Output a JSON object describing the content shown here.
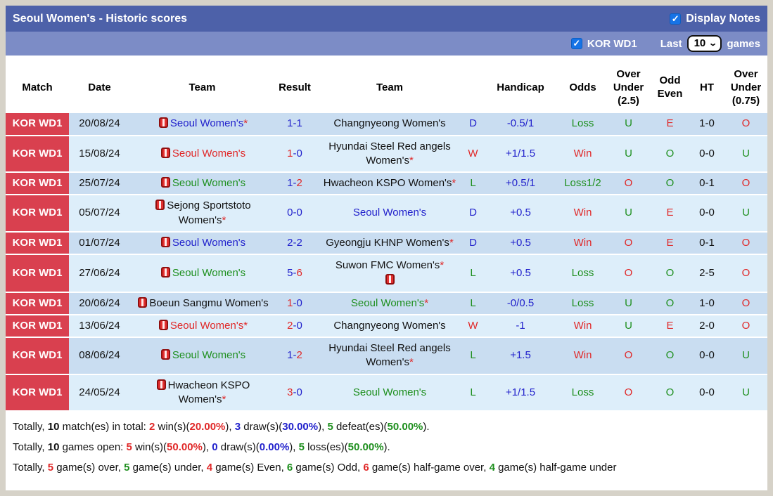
{
  "title_bar": {
    "title": "Seoul Women's - Historic scores",
    "display_notes_label": "Display Notes"
  },
  "filter_bar": {
    "league_label": "KOR WD1",
    "last_label": "Last",
    "games_count": "10",
    "games_label": "games"
  },
  "colors": {
    "accent_blue": "#2222cc",
    "accent_red": "#e02828",
    "accent_green": "#1e8f1e",
    "match_red": "#d9404f",
    "bar_dark": "#4d61a9",
    "bar_light": "#7c8cc6",
    "row_dark": "#c9ddf1",
    "row_light": "#ddeefa"
  },
  "table": {
    "headers": [
      "Match",
      "Date",
      "Team",
      "Result",
      "Team",
      "",
      "Handicap",
      "Odds",
      "Over Under (2.5)",
      "Odd Even",
      "HT",
      "Over Under (0.75)"
    ],
    "rows": [
      {
        "match": "KOR WD1",
        "date": "20/08/24",
        "home": "Seoul Women's",
        "home_star": "*",
        "home_color": "c-blue",
        "score_home": "1",
        "score_home_color": "c-blue",
        "score_sep": "-",
        "score_away": "1",
        "score_away_color": "c-blue",
        "away": "Changnyeong Women's",
        "away_star": "",
        "away_color": "c-black",
        "dwl": "D",
        "dwl_color": "c-blue",
        "handicap": "-0.5/1",
        "odds": "Loss",
        "odds_color": "c-green",
        "ou25": "U",
        "ou25_color": "c-green",
        "oe": "E",
        "oe_color": "c-red",
        "ht": "1-0",
        "ou075": "O",
        "ou075_color": "c-red"
      },
      {
        "match": "KOR WD1",
        "date": "15/08/24",
        "home": "Seoul Women's",
        "home_star": "",
        "home_color": "c-red",
        "score_home": "1",
        "score_home_color": "c-red",
        "score_sep": "-",
        "score_away": "0",
        "score_away_color": "c-blue",
        "away": "Hyundai Steel Red angels Women's",
        "away_star": "*",
        "away_color": "c-black",
        "dwl": "W",
        "dwl_color": "c-red",
        "handicap": "+1/1.5",
        "odds": "Win",
        "odds_color": "c-red",
        "ou25": "U",
        "ou25_color": "c-green",
        "oe": "O",
        "oe_color": "c-green",
        "ht": "0-0",
        "ou075": "U",
        "ou075_color": "c-green"
      },
      {
        "match": "KOR WD1",
        "date": "25/07/24",
        "home": "Seoul Women's",
        "home_star": "",
        "home_color": "c-green",
        "score_home": "1",
        "score_home_color": "c-blue",
        "score_sep": "-",
        "score_away": "2",
        "score_away_color": "c-red",
        "away": "Hwacheon KSPO Women's",
        "away_star": "*",
        "away_color": "c-black",
        "dwl": "L",
        "dwl_color": "c-green",
        "handicap": "+0.5/1",
        "odds": "Loss1/2",
        "odds_color": "c-green",
        "ou25": "O",
        "ou25_color": "c-red",
        "oe": "O",
        "oe_color": "c-green",
        "ht": "0-1",
        "ou075": "O",
        "ou075_color": "c-red"
      },
      {
        "match": "KOR WD1",
        "date": "05/07/24",
        "home": "Sejong Sportstoto Women's",
        "home_star": "*",
        "home_color": "c-black",
        "score_home": "0",
        "score_home_color": "c-blue",
        "score_sep": "-",
        "score_away": "0",
        "score_away_color": "c-blue",
        "away": "Seoul Women's",
        "away_star": "",
        "away_color": "c-blue",
        "dwl": "D",
        "dwl_color": "c-blue",
        "handicap": "+0.5",
        "odds": "Win",
        "odds_color": "c-red",
        "ou25": "U",
        "ou25_color": "c-green",
        "oe": "E",
        "oe_color": "c-red",
        "ht": "0-0",
        "ou075": "U",
        "ou075_color": "c-green"
      },
      {
        "match": "KOR WD1",
        "date": "01/07/24",
        "home": "Seoul Women's",
        "home_star": "",
        "home_color": "c-blue",
        "score_home": "2",
        "score_home_color": "c-blue",
        "score_sep": "-",
        "score_away": "2",
        "score_away_color": "c-blue",
        "away": "Gyeongju KHNP Women's",
        "away_star": "*",
        "away_color": "c-black",
        "dwl": "D",
        "dwl_color": "c-blue",
        "handicap": "+0.5",
        "odds": "Win",
        "odds_color": "c-red",
        "ou25": "O",
        "ou25_color": "c-red",
        "oe": "E",
        "oe_color": "c-red",
        "ht": "0-1",
        "ou075": "O",
        "ou075_color": "c-red"
      },
      {
        "match": "KOR WD1",
        "date": "27/06/24",
        "home": "Seoul Women's",
        "home_star": "",
        "home_color": "c-green",
        "score_home": "5",
        "score_home_color": "c-blue",
        "score_sep": "-",
        "score_away": "6",
        "score_away_color": "c-red",
        "away": "Suwon FMC Women's",
        "away_star": "*",
        "away_color": "c-black",
        "dwl": "L",
        "dwl_color": "c-green",
        "handicap": "+0.5",
        "odds": "Loss",
        "odds_color": "c-green",
        "ou25": "O",
        "ou25_color": "c-red",
        "oe": "O",
        "oe_color": "c-green",
        "ht": "2-5",
        "ou075": "O",
        "ou075_color": "c-red"
      },
      {
        "match": "KOR WD1",
        "date": "20/06/24",
        "home": "Boeun Sangmu Women's",
        "home_star": "",
        "home_color": "c-black",
        "score_home": "1",
        "score_home_color": "c-red",
        "score_sep": "-",
        "score_away": "0",
        "score_away_color": "c-blue",
        "away": "Seoul Women's",
        "away_star": "*",
        "away_color": "c-green",
        "dwl": "L",
        "dwl_color": "c-green",
        "handicap": "-0/0.5",
        "odds": "Loss",
        "odds_color": "c-green",
        "ou25": "U",
        "ou25_color": "c-green",
        "oe": "O",
        "oe_color": "c-green",
        "ht": "1-0",
        "ou075": "O",
        "ou075_color": "c-red"
      },
      {
        "match": "KOR WD1",
        "date": "13/06/24",
        "home": "Seoul Women's",
        "home_star": "*",
        "home_color": "c-red",
        "score_home": "2",
        "score_home_color": "c-red",
        "score_sep": "-",
        "score_away": "0",
        "score_away_color": "c-blue",
        "away": "Changnyeong Women's",
        "away_star": "",
        "away_color": "c-black",
        "dwl": "W",
        "dwl_color": "c-red",
        "handicap": "-1",
        "odds": "Win",
        "odds_color": "c-red",
        "ou25": "U",
        "ou25_color": "c-green",
        "oe": "E",
        "oe_color": "c-red",
        "ht": "2-0",
        "ou075": "O",
        "ou075_color": "c-red"
      },
      {
        "match": "KOR WD1",
        "date": "08/06/24",
        "home": "Seoul Women's",
        "home_star": "",
        "home_color": "c-green",
        "score_home": "1",
        "score_home_color": "c-blue",
        "score_sep": "-",
        "score_away": "2",
        "score_away_color": "c-red",
        "away": "Hyundai Steel Red angels Women's",
        "away_star": "*",
        "away_color": "c-black",
        "dwl": "L",
        "dwl_color": "c-green",
        "handicap": "+1.5",
        "odds": "Win",
        "odds_color": "c-red",
        "ou25": "O",
        "ou25_color": "c-red",
        "oe": "O",
        "oe_color": "c-green",
        "ht": "0-0",
        "ou075": "U",
        "ou075_color": "c-green"
      },
      {
        "match": "KOR WD1",
        "date": "24/05/24",
        "home": "Hwacheon KSPO Women's",
        "home_star": "*",
        "home_color": "c-black",
        "score_home": "3",
        "score_home_color": "c-red",
        "score_sep": "-",
        "score_away": "0",
        "score_away_color": "c-blue",
        "away": "Seoul Women's",
        "away_star": "",
        "away_color": "c-green",
        "dwl": "L",
        "dwl_color": "c-green",
        "handicap": "+1/1.5",
        "odds": "Loss",
        "odds_color": "c-green",
        "ou25": "O",
        "ou25_color": "c-red",
        "oe": "O",
        "oe_color": "c-green",
        "ht": "0-0",
        "ou075": "U",
        "ou075_color": "c-green"
      }
    ]
  },
  "footer": {
    "lines": [
      [
        {
          "t": "Totally, "
        },
        {
          "t": "10",
          "c": "f-b"
        },
        {
          "t": " match(es) in total: "
        },
        {
          "t": "2",
          "c": "f-red"
        },
        {
          "t": " win(s)("
        },
        {
          "t": "20.00%",
          "c": "f-red"
        },
        {
          "t": "), "
        },
        {
          "t": "3",
          "c": "f-blue"
        },
        {
          "t": " draw(s)("
        },
        {
          "t": "30.00%",
          "c": "f-blue"
        },
        {
          "t": "), "
        },
        {
          "t": "5",
          "c": "f-green"
        },
        {
          "t": " defeat(es)("
        },
        {
          "t": "50.00%",
          "c": "f-green"
        },
        {
          "t": ")."
        }
      ],
      [
        {
          "t": "Totally, "
        },
        {
          "t": "10",
          "c": "f-b"
        },
        {
          "t": " games open: "
        },
        {
          "t": "5",
          "c": "f-red"
        },
        {
          "t": " win(s)("
        },
        {
          "t": "50.00%",
          "c": "f-red"
        },
        {
          "t": "), "
        },
        {
          "t": "0",
          "c": "f-blue"
        },
        {
          "t": " draw(s)("
        },
        {
          "t": "0.00%",
          "c": "f-blue"
        },
        {
          "t": "), "
        },
        {
          "t": "5",
          "c": "f-green"
        },
        {
          "t": " loss(es)("
        },
        {
          "t": "50.00%",
          "c": "f-green"
        },
        {
          "t": ")."
        }
      ],
      [
        {
          "t": "Totally, "
        },
        {
          "t": "5",
          "c": "f-red"
        },
        {
          "t": " game(s) over, "
        },
        {
          "t": "5",
          "c": "f-green"
        },
        {
          "t": " game(s) under, "
        },
        {
          "t": "4",
          "c": "f-red"
        },
        {
          "t": " game(s) Even, "
        },
        {
          "t": "6",
          "c": "f-green"
        },
        {
          "t": " game(s) Odd, "
        },
        {
          "t": "6",
          "c": "f-red"
        },
        {
          "t": " game(s) half-game over, "
        },
        {
          "t": "4",
          "c": "f-green"
        },
        {
          "t": " game(s) half-game under"
        }
      ]
    ]
  }
}
